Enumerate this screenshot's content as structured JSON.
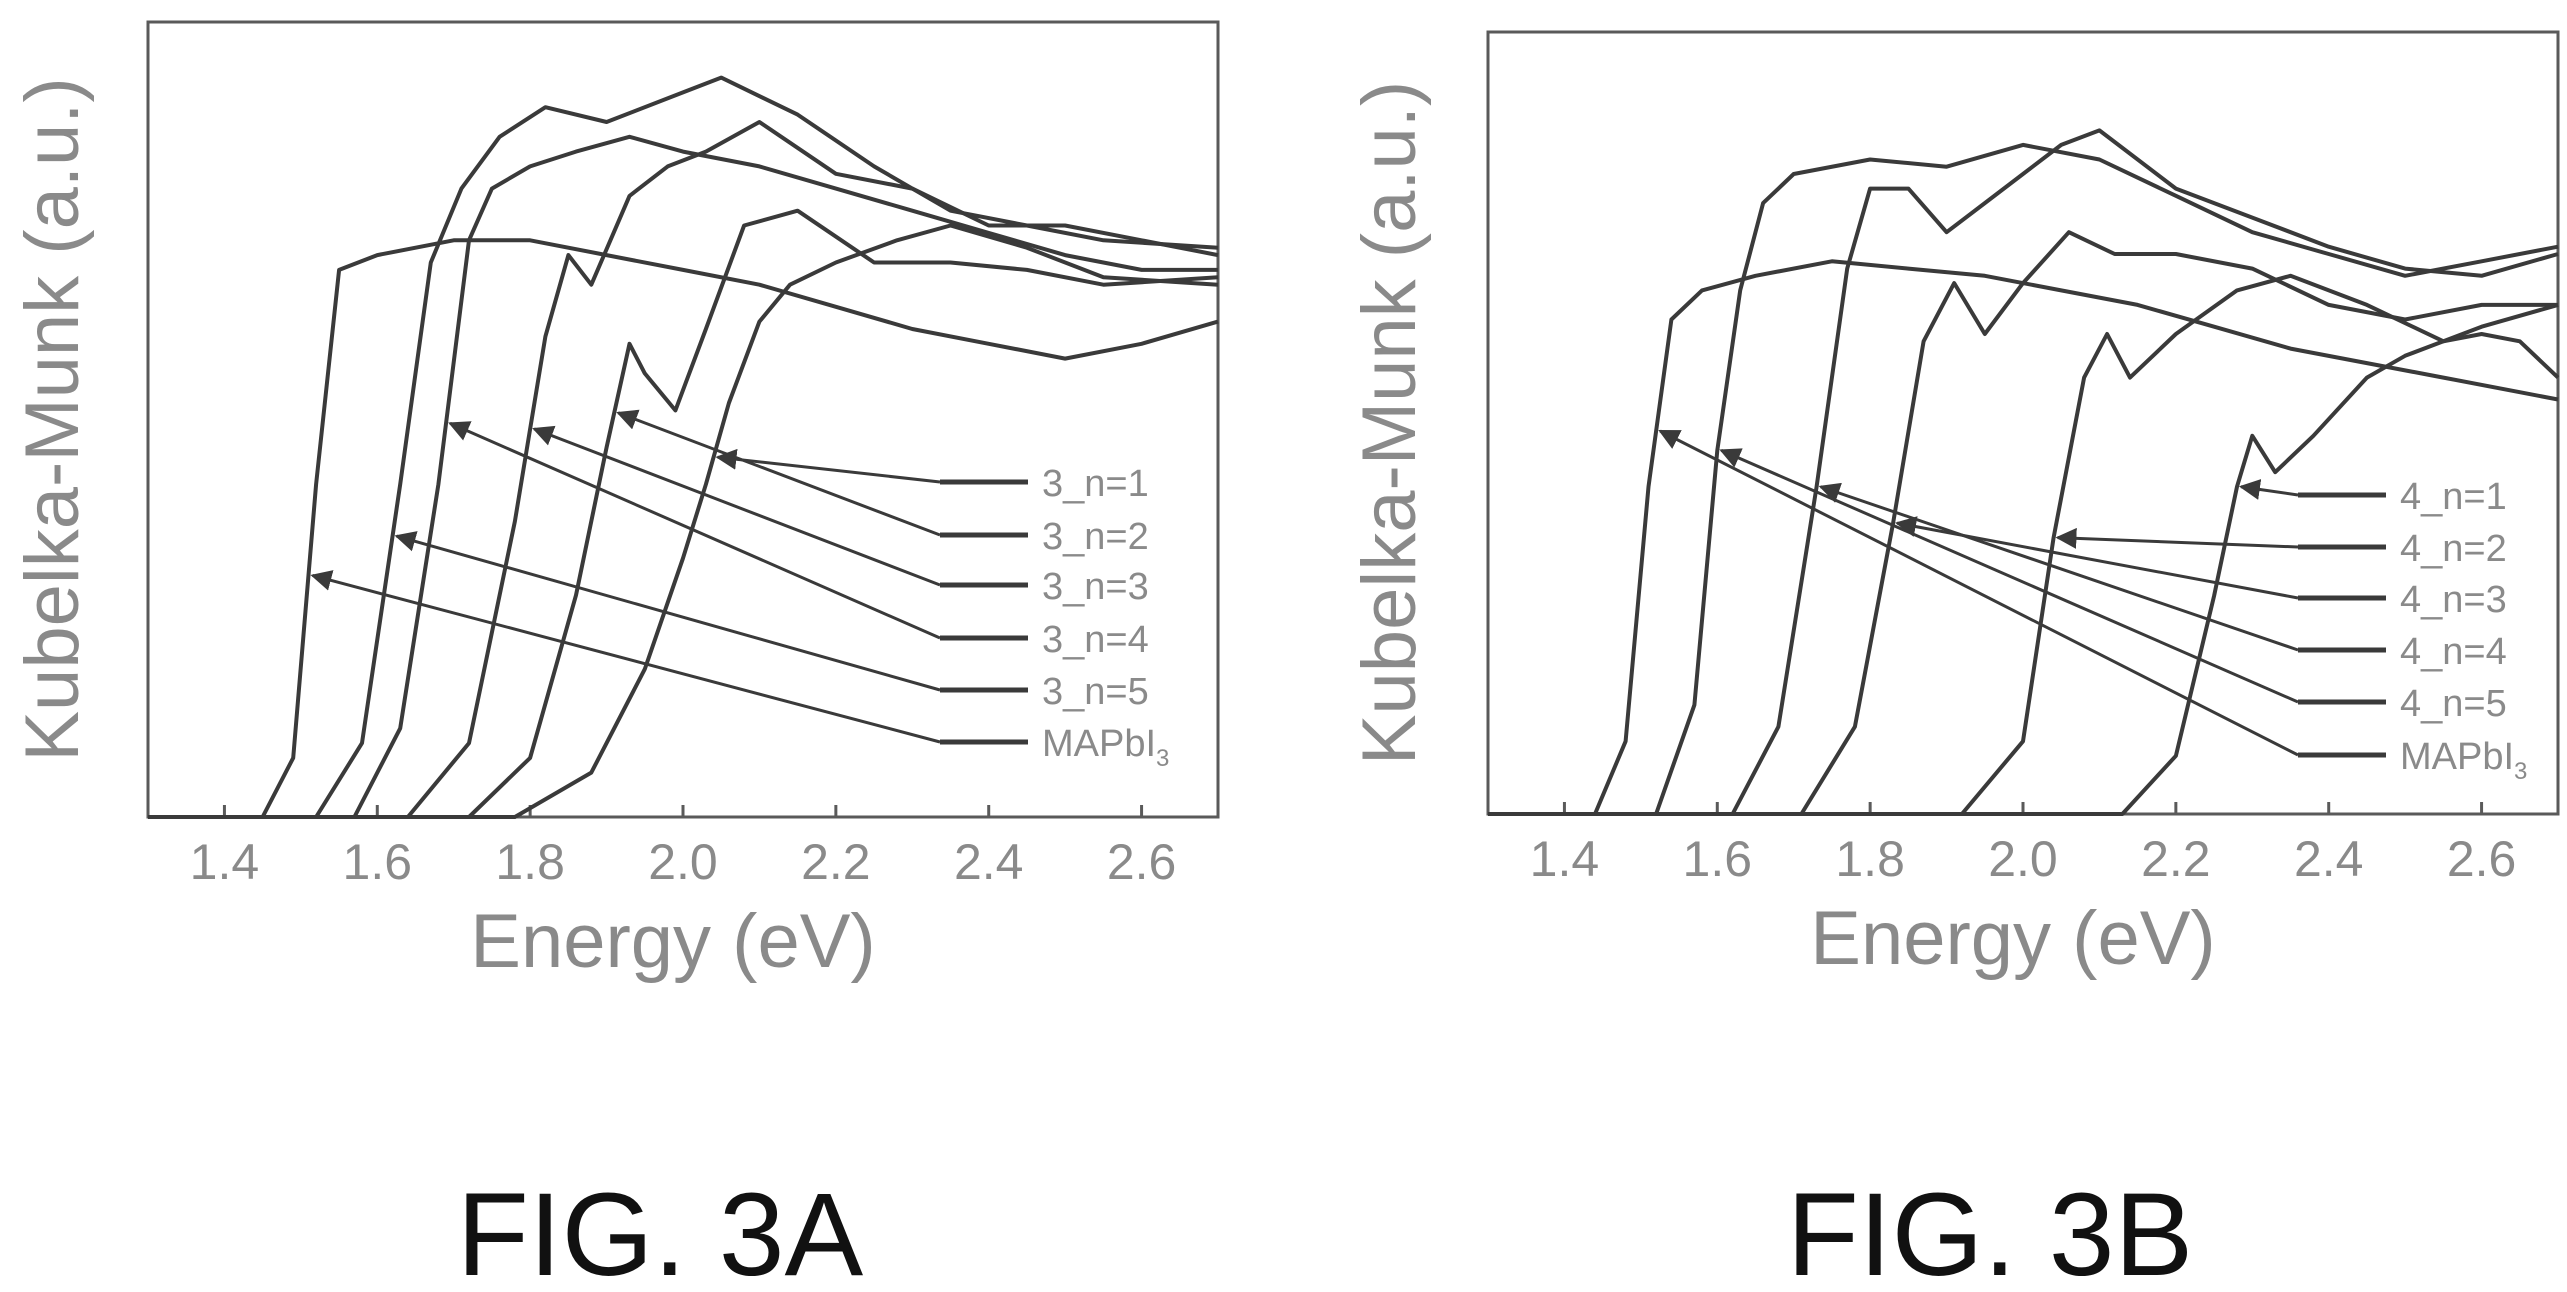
{
  "colors": {
    "curve": "#3a3a3a",
    "frame": "#5a5a5a",
    "text": "#8a8a8a",
    "caption": "#111111"
  },
  "chart_data": [
    {
      "type": "line",
      "caption": "FIG. 3A",
      "xlabel": "Energy (eV)",
      "ylabel": "Kubelka-Munk (a.u.)",
      "xlim": [
        1.3,
        2.7
      ],
      "ylim": [
        0,
        1
      ],
      "xticks": [
        "1.4",
        "1.6",
        "1.8",
        "2.0",
        "2.2",
        "2.4",
        "2.6"
      ],
      "legend_placement": "right",
      "series": [
        {
          "name": "3_n=1",
          "arrow_at": 2.04,
          "x": [
            1.3,
            1.78,
            1.88,
            1.95,
            2.0,
            2.03,
            2.06,
            2.1,
            2.14,
            2.2,
            2.28,
            2.35,
            2.45,
            2.55,
            2.7
          ],
          "y": [
            0.0,
            0.0,
            0.06,
            0.2,
            0.35,
            0.45,
            0.56,
            0.67,
            0.72,
            0.75,
            0.78,
            0.8,
            0.77,
            0.73,
            0.72
          ]
        },
        {
          "name": "3_n=2",
          "arrow_at": 1.91,
          "x": [
            1.3,
            1.72,
            1.8,
            1.86,
            1.9,
            1.93,
            1.95,
            1.99,
            2.03,
            2.08,
            2.15,
            2.25,
            2.35,
            2.45,
            2.55,
            2.7
          ],
          "y": [
            0.0,
            0.0,
            0.08,
            0.3,
            0.5,
            0.64,
            0.6,
            0.55,
            0.66,
            0.8,
            0.82,
            0.75,
            0.75,
            0.74,
            0.72,
            0.73
          ]
        },
        {
          "name": "3_n=3",
          "arrow_at": 1.8,
          "x": [
            1.3,
            1.64,
            1.72,
            1.78,
            1.82,
            1.85,
            1.88,
            1.93,
            1.98,
            2.03,
            2.1,
            2.2,
            2.3,
            2.4,
            2.5,
            2.6,
            2.7
          ],
          "y": [
            0.0,
            0.0,
            0.1,
            0.4,
            0.65,
            0.76,
            0.72,
            0.84,
            0.88,
            0.9,
            0.94,
            0.87,
            0.85,
            0.8,
            0.8,
            0.78,
            0.76
          ]
        },
        {
          "name": "3_n=4",
          "arrow_at": 1.69,
          "x": [
            1.3,
            1.57,
            1.63,
            1.68,
            1.72,
            1.75,
            1.8,
            1.86,
            1.93,
            2.0,
            2.1,
            2.2,
            2.3,
            2.4,
            2.5,
            2.6,
            2.7
          ],
          "y": [
            0.0,
            0.0,
            0.12,
            0.45,
            0.78,
            0.85,
            0.88,
            0.9,
            0.92,
            0.9,
            0.88,
            0.85,
            0.82,
            0.79,
            0.76,
            0.74,
            0.74
          ]
        },
        {
          "name": "3_n=5",
          "arrow_at": 1.62,
          "x": [
            1.3,
            1.52,
            1.58,
            1.63,
            1.67,
            1.71,
            1.76,
            1.82,
            1.9,
            2.0,
            2.05,
            2.15,
            2.25,
            2.35,
            2.45,
            2.55,
            2.7
          ],
          "y": [
            0.0,
            0.0,
            0.1,
            0.45,
            0.75,
            0.85,
            0.92,
            0.96,
            0.94,
            0.98,
            1.0,
            0.95,
            0.88,
            0.82,
            0.8,
            0.78,
            0.77
          ]
        },
        {
          "name": "MAPbI3",
          "arrow_at": 1.51,
          "x": [
            1.3,
            1.45,
            1.49,
            1.52,
            1.55,
            1.6,
            1.7,
            1.8,
            1.9,
            2.0,
            2.1,
            2.2,
            2.3,
            2.4,
            2.5,
            2.6,
            2.7
          ],
          "y": [
            0.0,
            0.0,
            0.08,
            0.45,
            0.74,
            0.76,
            0.78,
            0.78,
            0.76,
            0.74,
            0.72,
            0.69,
            0.66,
            0.64,
            0.62,
            0.64,
            0.67
          ]
        }
      ]
    },
    {
      "type": "line",
      "caption": "FIG. 3B",
      "xlabel": "Energy (eV)",
      "ylabel": "Kubelka-Munk (a.u.)",
      "xlim": [
        1.3,
        2.7
      ],
      "ylim": [
        0,
        1
      ],
      "xticks": [
        "1.4",
        "1.6",
        "1.8",
        "2.0",
        "2.2",
        "2.4",
        "2.6"
      ],
      "legend_placement": "right",
      "series": [
        {
          "name": "4_n=1",
          "arrow_at": 2.28,
          "x": [
            1.3,
            2.13,
            2.2,
            2.25,
            2.28,
            2.3,
            2.33,
            2.38,
            2.45,
            2.5,
            2.55,
            2.6,
            2.65,
            2.7
          ],
          "y": [
            0.0,
            0.0,
            0.08,
            0.3,
            0.45,
            0.52,
            0.47,
            0.52,
            0.6,
            0.63,
            0.65,
            0.66,
            0.65,
            0.6
          ]
        },
        {
          "name": "4_n=2",
          "arrow_at": 2.04,
          "x": [
            1.3,
            1.92,
            2.0,
            2.04,
            2.08,
            2.11,
            2.14,
            2.2,
            2.28,
            2.35,
            2.45,
            2.55,
            2.6,
            2.7
          ],
          "y": [
            0.0,
            0.0,
            0.1,
            0.38,
            0.6,
            0.66,
            0.6,
            0.66,
            0.72,
            0.74,
            0.7,
            0.65,
            0.67,
            0.7
          ]
        },
        {
          "name": "4_n=3",
          "arrow_at": 1.83,
          "x": [
            1.3,
            1.71,
            1.78,
            1.83,
            1.87,
            1.91,
            1.95,
            2.0,
            2.06,
            2.12,
            2.2,
            2.3,
            2.4,
            2.5,
            2.6,
            2.7
          ],
          "y": [
            0.0,
            0.0,
            0.12,
            0.4,
            0.65,
            0.73,
            0.66,
            0.73,
            0.8,
            0.77,
            0.77,
            0.75,
            0.7,
            0.68,
            0.7,
            0.7
          ]
        },
        {
          "name": "4_n=4",
          "arrow_at": 1.73,
          "x": [
            1.3,
            1.62,
            1.68,
            1.73,
            1.77,
            1.8,
            1.85,
            1.9,
            1.95,
            2.0,
            2.05,
            2.1,
            2.2,
            2.3,
            2.4,
            2.5,
            2.6,
            2.7
          ],
          "y": [
            0.0,
            0.0,
            0.12,
            0.45,
            0.75,
            0.86,
            0.86,
            0.8,
            0.84,
            0.88,
            0.92,
            0.94,
            0.86,
            0.82,
            0.78,
            0.75,
            0.74,
            0.77
          ]
        },
        {
          "name": "4_n=5",
          "arrow_at": 1.6,
          "x": [
            1.3,
            1.52,
            1.57,
            1.6,
            1.63,
            1.66,
            1.7,
            1.8,
            1.9,
            2.0,
            2.1,
            2.2,
            2.3,
            2.4,
            2.5,
            2.6,
            2.7
          ],
          "y": [
            0.0,
            0.0,
            0.15,
            0.5,
            0.72,
            0.84,
            0.88,
            0.9,
            0.89,
            0.92,
            0.9,
            0.85,
            0.8,
            0.77,
            0.74,
            0.76,
            0.78
          ]
        },
        {
          "name": "MAPbI3",
          "arrow_at": 1.52,
          "x": [
            1.3,
            1.44,
            1.48,
            1.51,
            1.54,
            1.58,
            1.65,
            1.75,
            1.85,
            1.95,
            2.05,
            2.15,
            2.25,
            2.35,
            2.45,
            2.55,
            2.65,
            2.7
          ],
          "y": [
            0.0,
            0.0,
            0.1,
            0.45,
            0.68,
            0.72,
            0.74,
            0.76,
            0.75,
            0.74,
            0.72,
            0.7,
            0.67,
            0.64,
            0.62,
            0.6,
            0.58,
            0.57
          ]
        }
      ]
    }
  ]
}
